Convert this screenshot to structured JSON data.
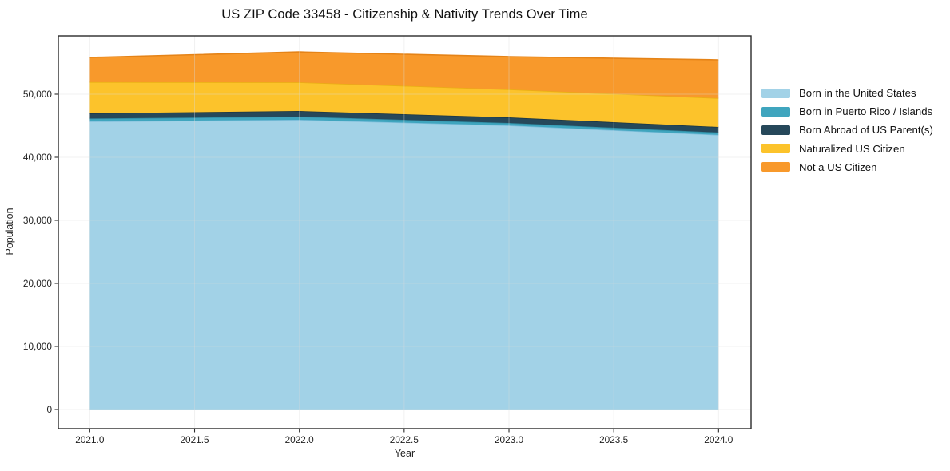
{
  "figure": {
    "background": "#ffffff"
  },
  "chart_data": {
    "type": "area",
    "stacked": true,
    "title": "US ZIP Code 33458 - Citizenship & Nativity Trends Over Time",
    "xlabel": "Year",
    "ylabel": "Population",
    "x": [
      2021,
      2022,
      2023,
      2024
    ],
    "series": [
      {
        "name": "Born in the United States",
        "color": "#A2D2E7",
        "edge": "#7EBEDB",
        "values": [
          45700,
          45950,
          45050,
          43550
        ]
      },
      {
        "name": "Born in Puerto Rico / Islands",
        "color": "#3FA5BE",
        "edge": "#2F8BA2",
        "values": [
          450,
          500,
          390,
          380
        ]
      },
      {
        "name": "Born Abroad of US Parent(s)",
        "color": "#26485A",
        "edge": "#1B3644",
        "values": [
          820,
          890,
          890,
          880
        ]
      },
      {
        "name": "Naturalized US Citizen",
        "color": "#FCC32B",
        "edge": "#E9AE14",
        "values": [
          4950,
          4550,
          4430,
          4560
        ]
      },
      {
        "name": "Not a US Citizen",
        "color": "#F8992B",
        "edge": "#E58317",
        "values": [
          3900,
          4800,
          5190,
          6070
        ]
      }
    ],
    "totals": [
      55820,
      56690,
      55950,
      55440
    ],
    "xticks": [
      2021.0,
      2021.5,
      2022.0,
      2022.5,
      2023.0,
      2023.5,
      2024.0
    ],
    "yticks": [
      0,
      10000,
      20000,
      30000,
      40000,
      50000
    ],
    "xtick_labels": [
      "2021.0",
      "2021.5",
      "2022.0",
      "2022.5",
      "2023.0",
      "2023.5",
      "2024.0"
    ],
    "ytick_labels": [
      "0",
      "10,000",
      "20,000",
      "30,000",
      "40,000",
      "50,000"
    ],
    "xlim": [
      2020.85,
      2024.155
    ],
    "ylim": [
      -3040,
      59240
    ],
    "grid": true,
    "grid_color": "#d9d9d9",
    "spine_color": "#2a2a2a",
    "legend_position": "right of plot, no frame"
  }
}
